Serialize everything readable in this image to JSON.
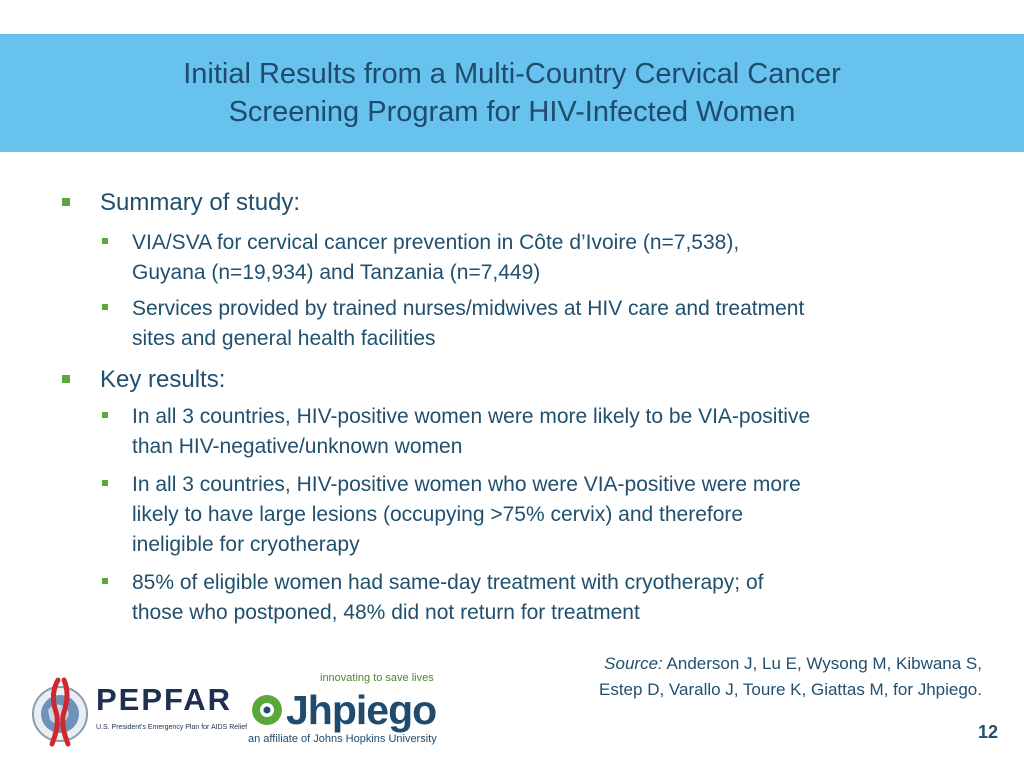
{
  "slide": {
    "title_lines": [
      "Initial Results from a Multi-Country Cervical Cancer",
      "Screening Program for HIV-Infected Women"
    ],
    "bullets": [
      {
        "text": "Summary of study:",
        "sub": [
          [
            "VIA/SVA for cervical cancer prevention in Côte d’Ivoire (n=7,538),",
            "Guyana (n=19,934) and Tanzania (n=7,449)"
          ],
          [
            "Services provided by trained nurses/midwives at HIV care and treatment",
            "sites and general health facilities"
          ]
        ]
      },
      {
        "text": "Key results:",
        "sub": [
          [
            "In all 3 countries, HIV-positive women were more likely to be VIA-positive",
            "than HIV-negative/unknown women"
          ],
          [
            "In all 3 countries, HIV-positive women who were VIA-positive were more",
            "likely to have large lesions (occupying >75% cervix) and therefore",
            "ineligible for cryotherapy"
          ],
          [
            "85% of eligible women had same-day treatment with cryotherapy; of",
            "those who postponed, 48% did not return for treatment"
          ]
        ]
      }
    ],
    "source": {
      "label": "Source:",
      "line1": " Anderson J, Lu E, Wysong M, Kibwana S,",
      "line2": "Estep D, Varallo J, Toure K, Giattas M, for Jhpiego."
    },
    "page_number": "12"
  },
  "logos": {
    "pepfar": {
      "name": "PEPFAR",
      "subtitle": "U.S. President's Emergency Plan for AIDS Relief"
    },
    "jhpiego": {
      "tagline": "innovating to save lives",
      "name": "Jhpiego",
      "affiliation": "an affiliate of Johns Hopkins University"
    }
  },
  "colors": {
    "title_band": "#67c2ee",
    "title_text": "#1f4b6e",
    "body_text": "#21506f",
    "bullet": "#5aa83a"
  }
}
